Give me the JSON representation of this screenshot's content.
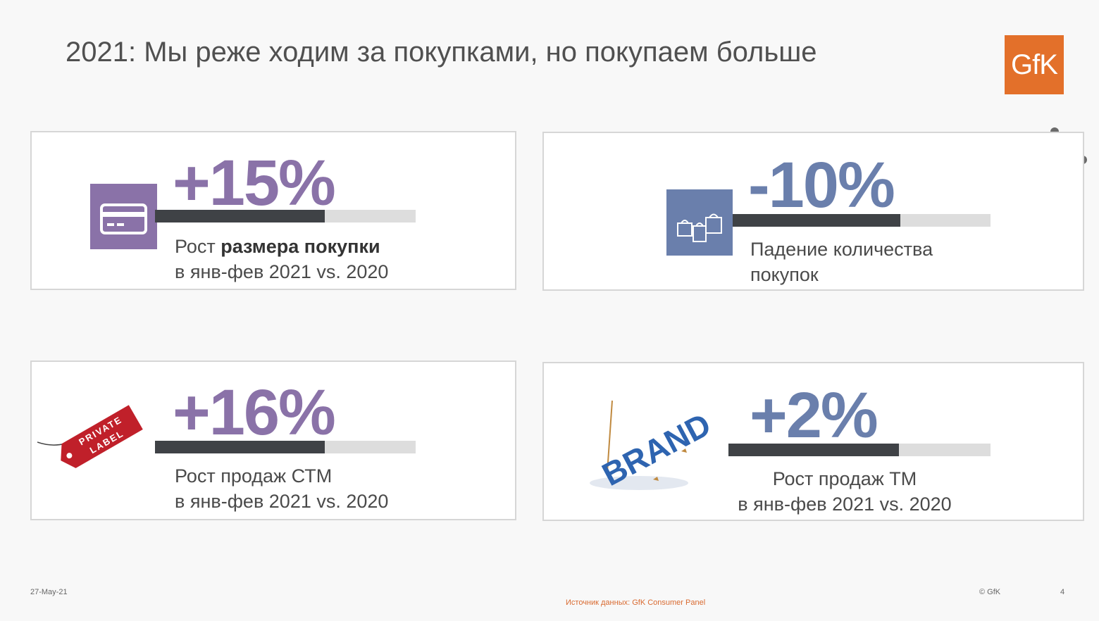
{
  "title": "2021: Мы реже ходим за покупками, но покупаем больше",
  "logo": {
    "text": "GfK",
    "color": "#e3702a"
  },
  "cards": [
    {
      "value": "+15%",
      "value_color": "#8a72a8",
      "caption_prefix": "Рост ",
      "caption_bold": "размера покупки",
      "caption_line2": "в янв-фев 2021 vs. 2020",
      "bar_fill_fraction": 0.65,
      "icon": "credit-card-icon",
      "icon_color": "#8a72a8"
    },
    {
      "value": "-10%",
      "value_color": "#6a7fac",
      "caption_line1": "Падение количества",
      "caption_line2": "покупок",
      "bar_fill_fraction": 0.65,
      "icon": "shopping-bags-icon",
      "icon_color": "#6a7fac"
    },
    {
      "value": "+16%",
      "value_color": "#8a72a8",
      "caption_line1": "Рост продаж СТМ",
      "caption_line2": "в янв-фев 2021 vs. 2020",
      "bar_fill_fraction": 0.65,
      "icon": "private-label-tag-icon",
      "tag_text_line1": "PRIVATE",
      "tag_text_line2": "LABEL"
    },
    {
      "value": "+2%",
      "value_color": "#6a7fac",
      "caption_line1": "Рост продаж ТМ",
      "caption_line2": "в янв-фев 2021 vs. 2020",
      "bar_fill_fraction": 0.65,
      "icon": "brand-letters-icon",
      "brand_text": "BRAND"
    }
  ],
  "footer": {
    "date": "27-May-21",
    "source": "Источник данных: GfK Consumer Panel",
    "copyright": "© GfK",
    "page": "4"
  }
}
